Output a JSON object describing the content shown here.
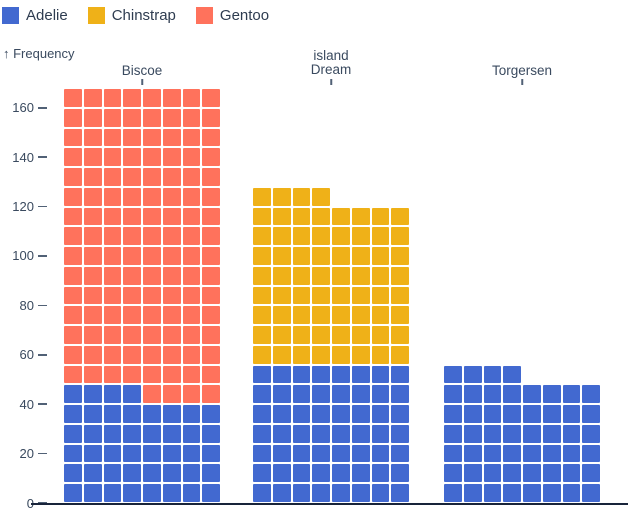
{
  "chart_data": {
    "type": "waffle",
    "mark": "stacked unit (waffle) chart",
    "ylabel": "↑ Frequency",
    "facet_dimension_label": "island",
    "yticks": [
      0,
      20,
      40,
      60,
      80,
      100,
      120,
      140,
      160
    ],
    "ylim": [
      0,
      168
    ],
    "unit_per_cell": 1,
    "columns_per_waffle": 8,
    "grid": false,
    "legend_position": "top-left",
    "legend": [
      {
        "label": "Adelie",
        "color": "#4269d0"
      },
      {
        "label": "Chinstrap",
        "color": "#efb118"
      },
      {
        "label": "Gentoo",
        "color": "#ff725c"
      }
    ],
    "facets": [
      {
        "label": "Biscoe",
        "show_dimension_label": false,
        "total": 168,
        "segments": [
          {
            "species": "Adelie",
            "count": 44
          },
          {
            "species": "Gentoo",
            "count": 124
          }
        ]
      },
      {
        "label": "Dream",
        "show_dimension_label": true,
        "total": 124,
        "segments": [
          {
            "species": "Adelie",
            "count": 56
          },
          {
            "species": "Chinstrap",
            "count": 68
          }
        ]
      },
      {
        "label": "Torgersen",
        "show_dimension_label": false,
        "total": 52,
        "segments": [
          {
            "species": "Adelie",
            "count": 52
          }
        ]
      }
    ]
  },
  "colors": {
    "background": "#ffffff",
    "text": "#3a4a5f",
    "axis_rule": "#18243a",
    "tick": "#516176",
    "cell_gap": "#ffffff"
  }
}
